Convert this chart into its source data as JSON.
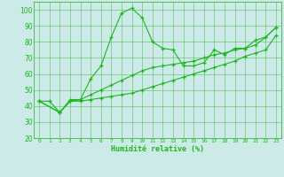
{
  "xlabel": "Humidité relative (%)",
  "background_color": "#cceae8",
  "grid_color": "#3db83d",
  "line_color": "#1db81d",
  "marker_color": "#1db81d",
  "xlim": [
    -0.5,
    23.5
  ],
  "ylim": [
    20,
    105
  ],
  "yticks": [
    20,
    30,
    40,
    50,
    60,
    70,
    80,
    90,
    100
  ],
  "xticks": [
    0,
    1,
    2,
    3,
    4,
    5,
    6,
    7,
    8,
    9,
    10,
    11,
    12,
    13,
    14,
    15,
    16,
    17,
    18,
    19,
    20,
    21,
    22,
    23
  ],
  "series": [
    {
      "x": [
        0,
        1,
        2,
        3,
        4,
        5,
        6,
        7,
        8,
        9,
        10,
        11,
        12,
        13,
        14,
        15,
        16,
        17,
        18,
        19,
        20,
        21,
        22,
        23
      ],
      "y": [
        43,
        43,
        36,
        44,
        44,
        57,
        65,
        83,
        98,
        101,
        95,
        80,
        76,
        75,
        65,
        65,
        67,
        75,
        72,
        76,
        76,
        81,
        83,
        89
      ]
    },
    {
      "x": [
        0,
        2,
        3,
        4,
        5,
        6,
        7,
        8,
        9,
        10,
        11,
        12,
        13,
        14,
        15,
        16,
        17,
        18,
        19,
        20,
        21,
        22,
        23
      ],
      "y": [
        43,
        36,
        43,
        44,
        47,
        50,
        53,
        56,
        59,
        62,
        64,
        65,
        66,
        67,
        68,
        70,
        72,
        73,
        75,
        76,
        78,
        83,
        89
      ]
    },
    {
      "x": [
        0,
        2,
        3,
        4,
        5,
        6,
        7,
        8,
        9,
        10,
        11,
        12,
        13,
        14,
        15,
        16,
        17,
        18,
        19,
        20,
        21,
        22,
        23
      ],
      "y": [
        43,
        36,
        43,
        43,
        44,
        45,
        46,
        47,
        48,
        50,
        52,
        54,
        56,
        58,
        60,
        62,
        64,
        66,
        68,
        71,
        73,
        75,
        84
      ]
    }
  ]
}
